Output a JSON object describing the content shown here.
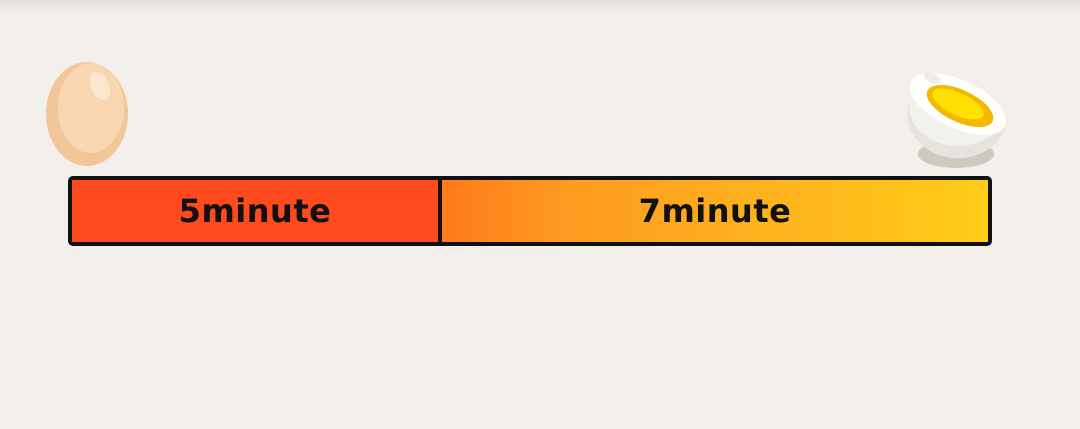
{
  "icons": {
    "start": "raw-egg-icon",
    "end": "boiled-egg-half-icon"
  },
  "timer": {
    "segments": [
      {
        "label": "5minute",
        "color": "#ff4a1f"
      },
      {
        "label": "7minute",
        "color_start": "#fe7a1a",
        "color_end": "#fecd16"
      }
    ]
  },
  "colors": {
    "background": "#f3f0eb",
    "outline": "#111111",
    "egg_shell": "#f5cfa5",
    "yolk": "#ffd400"
  }
}
